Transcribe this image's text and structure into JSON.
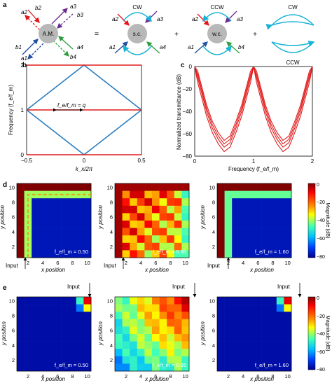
{
  "panel_labels": {
    "a": "a",
    "b": "b",
    "c": "c",
    "d": "d",
    "e": "e"
  },
  "colors": {
    "red": "#e8141b",
    "blue": "#1f77b4",
    "cyan": "#17b3d6",
    "purple": "#6a2c91",
    "green": "#2e9e3e",
    "darkblue": "#1c2f7a",
    "node_fill": "#b8b8b8",
    "plot_red": "#e01b1b",
    "plot_blue": "#2a7ec0"
  },
  "panel_a": {
    "am_label": "A.M.",
    "sc_label": "s.c.",
    "wc_label": "w.c.",
    "equals": "=",
    "plus": "+",
    "cw": "CW",
    "ccw": "CCW",
    "port_labels": {
      "a1": "a1",
      "b1": "b1",
      "a2": "a2",
      "b2": "b2",
      "a3": "a3",
      "b3": "b3",
      "a4": "a4",
      "b4": "b4"
    }
  },
  "panel_b": {
    "ylabel": "Frequency (f_e/f_m)",
    "xlabel": "k_x/2π",
    "annotation": "f_e/f_m = q",
    "xticks": [
      "−0.5",
      "0",
      "0.5"
    ],
    "yticks": [
      "0",
      "1",
      "2"
    ]
  },
  "panel_c": {
    "ylabel": "Normalized transmittance (dB)",
    "xlabel": "Frequency (f_e/f_m)",
    "xticks": [
      "0",
      "1",
      "2"
    ],
    "yticks": [
      "0",
      "−20",
      "−40",
      "−60",
      "−80"
    ]
  },
  "panel_d": {
    "ylabel": "y position",
    "xlabel": "x position",
    "input_label": "Input",
    "freq_labels": [
      "f_e/f_m = 0.50",
      "f_e/f_m = 0.95",
      "f_e/f_m = 1.60"
    ],
    "colorbar_label": "Magnitude (dB)",
    "colorbar_ticks": [
      "0",
      "−20",
      "−40",
      "−60",
      "−80"
    ]
  },
  "panel_e": {
    "ylabel": "y position",
    "xlabel": "x position",
    "input_label": "Input",
    "freq_labels": [
      "f_e/f_m = 0.50",
      "f_e/f_m = 0.95",
      "f_e/f_m = 1.60"
    ],
    "colorbar_label": "Magnitude (dB)",
    "colorbar_ticks": [
      "0",
      "−20",
      "−40",
      "−60",
      "−80"
    ]
  },
  "axis_ticks_grid": [
    "2",
    "4",
    "6",
    "8",
    "10"
  ],
  "chart_data": [
    {
      "type": "line",
      "panel": "b",
      "x": [
        -0.5,
        0,
        0.5
      ],
      "series": [
        {
          "values": [
            1,
            2,
            1
          ]
        },
        {
          "values": [
            1,
            0,
            1
          ]
        },
        {
          "values": [
            0,
            0,
            0
          ]
        },
        {
          "values": [
            2,
            2,
            2
          ]
        },
        {
          "values": [
            1,
            1,
            1
          ]
        }
      ],
      "xlim": [
        -0.5,
        0.5
      ],
      "ylim": [
        0,
        2
      ]
    },
    {
      "type": "line",
      "panel": "c",
      "x": [
        0,
        0.05,
        0.1,
        0.2,
        0.3,
        0.4,
        0.5,
        0.6,
        0.7,
        0.8,
        0.9,
        0.95,
        1.0,
        1.05,
        1.1,
        1.2,
        1.3,
        1.4,
        1.5,
        1.6,
        1.7,
        1.8,
        1.9,
        1.95,
        2.0
      ],
      "series": [
        {
          "values": [
            0,
            -10,
            -20,
            -40,
            -55,
            -65,
            -72,
            -68,
            -55,
            -40,
            -20,
            -10,
            0,
            -10,
            -20,
            -40,
            -55,
            -65,
            -72,
            -68,
            -55,
            -40,
            -20,
            -10,
            0
          ]
        }
      ],
      "xlim": [
        0,
        2
      ],
      "ylim": [
        -80,
        0
      ]
    },
    {
      "type": "heatmap",
      "panel": "d1",
      "value_range": [
        -80,
        0
      ]
    },
    {
      "type": "heatmap",
      "panel": "d2",
      "value_range": [
        -80,
        0
      ]
    },
    {
      "type": "heatmap",
      "panel": "d3",
      "value_range": [
        -80,
        0
      ]
    },
    {
      "type": "heatmap",
      "panel": "e1",
      "value_range": [
        -80,
        0
      ]
    },
    {
      "type": "heatmap",
      "panel": "e2",
      "value_range": [
        -80,
        0
      ]
    },
    {
      "type": "heatmap",
      "panel": "e3",
      "value_range": [
        -80,
        0
      ]
    }
  ]
}
